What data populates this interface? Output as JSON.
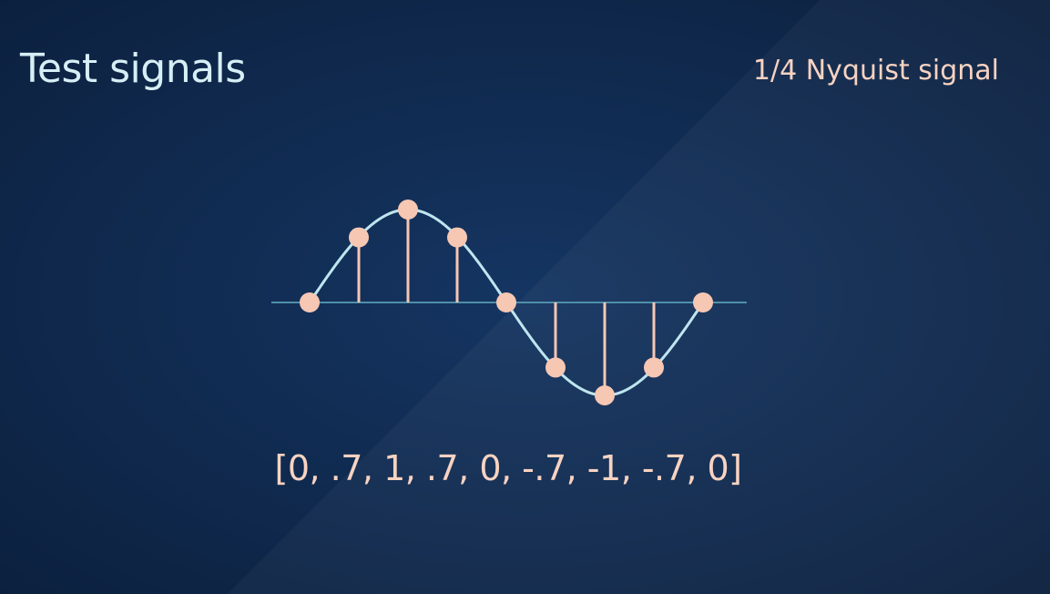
{
  "slide": {
    "title": "Test signals",
    "subtitle": "1/4 Nyquist signal",
    "values_text": "[0, .7, 1, .7, 0, -.7, -1, -.7, 0]"
  },
  "signal": {
    "samples": [
      0,
      0.7,
      1,
      0.7,
      0,
      -0.7,
      -1,
      -0.7,
      0
    ]
  },
  "colors": {
    "background": "#0f2748",
    "title": "#d6eef5",
    "accent": "#f7d3c2",
    "sample_dot": "#f6c7b3",
    "curve": "#bfe6ef",
    "axis": "#4f8fa8"
  }
}
